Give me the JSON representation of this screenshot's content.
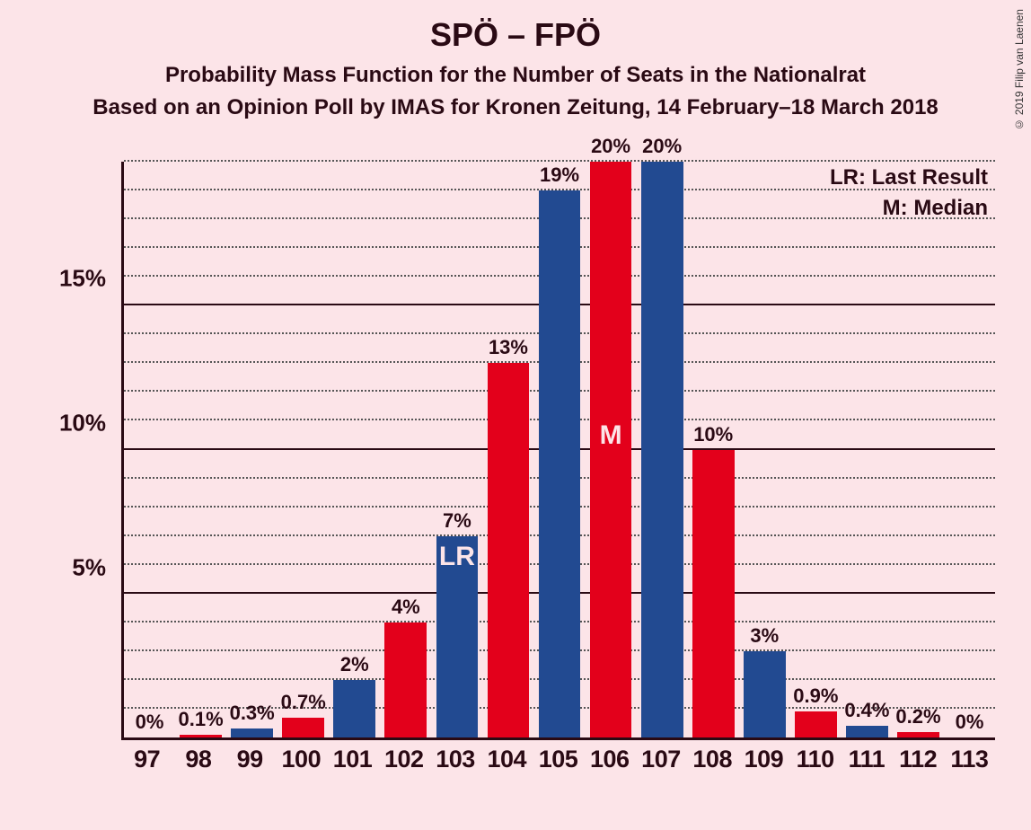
{
  "copyright": "© 2019 Filip van Laenen",
  "title": "SPÖ – FPÖ",
  "subtitle1": "Probability Mass Function for the Number of Seats in the Nationalrat",
  "subtitle2": "Based on an Opinion Poll by IMAS for Kronen Zeitung, 14 February–18 March 2018",
  "legend": {
    "lr": "LR: Last Result",
    "m": "M: Median"
  },
  "chart": {
    "type": "bar",
    "background_color": "#fce4e8",
    "text_color": "#2a0a14",
    "bar_colors": {
      "blue": "#224a91",
      "red": "#e3001b"
    },
    "y": {
      "max": 20,
      "major_ticks": [
        5,
        10,
        15
      ],
      "minor_step": 1,
      "tick_labels": {
        "5": "5%",
        "10": "10%",
        "15": "15%"
      }
    },
    "bars": [
      {
        "x": "97",
        "value": 0,
        "label": "0%",
        "color": "blue"
      },
      {
        "x": "98",
        "value": 0.1,
        "label": "0.1%",
        "color": "red"
      },
      {
        "x": "99",
        "value": 0.3,
        "label": "0.3%",
        "color": "blue"
      },
      {
        "x": "100",
        "value": 0.7,
        "label": "0.7%",
        "color": "red"
      },
      {
        "x": "101",
        "value": 2,
        "label": "2%",
        "color": "blue"
      },
      {
        "x": "102",
        "value": 4,
        "label": "4%",
        "color": "red"
      },
      {
        "x": "103",
        "value": 7,
        "label": "7%",
        "color": "blue",
        "annotation": "LR",
        "annotation_pos": "top"
      },
      {
        "x": "104",
        "value": 13,
        "label": "13%",
        "color": "red"
      },
      {
        "x": "105",
        "value": 19,
        "label": "19%",
        "color": "blue"
      },
      {
        "x": "106",
        "value": 20,
        "label": "20%",
        "color": "red",
        "annotation": "M",
        "annotation_pos": "mid"
      },
      {
        "x": "107",
        "value": 20,
        "label": "20%",
        "color": "blue"
      },
      {
        "x": "108",
        "value": 10,
        "label": "10%",
        "color": "red"
      },
      {
        "x": "109",
        "value": 3,
        "label": "3%",
        "color": "blue"
      },
      {
        "x": "110",
        "value": 0.9,
        "label": "0.9%",
        "color": "red"
      },
      {
        "x": "111",
        "value": 0.4,
        "label": "0.4%",
        "color": "blue"
      },
      {
        "x": "112",
        "value": 0.2,
        "label": "0.2%",
        "color": "red"
      },
      {
        "x": "113",
        "value": 0,
        "label": "0%",
        "color": "blue"
      }
    ]
  }
}
